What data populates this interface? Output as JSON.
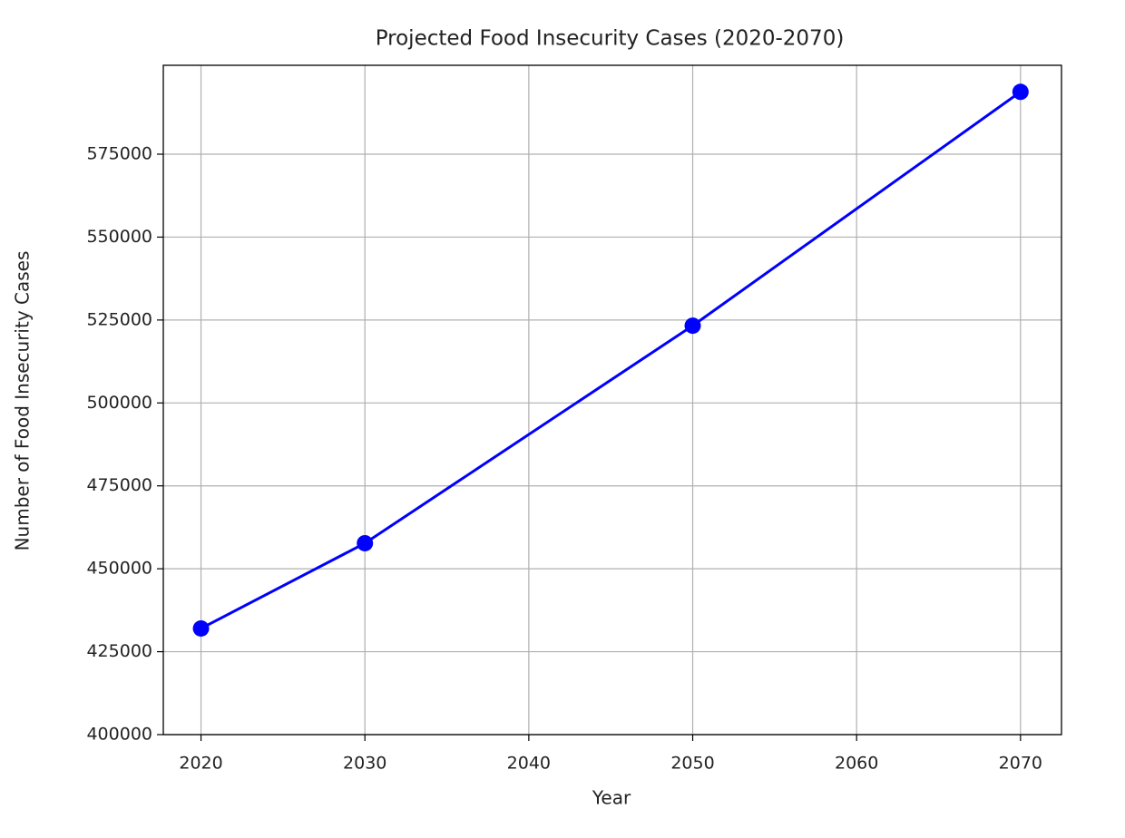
{
  "chart_data": {
    "type": "line",
    "title": "Projected Food Insecurity Cases (2020-2070)",
    "x_label": "Year",
    "y_label": "Number of Food Insecurity Cases",
    "x": [
      2020,
      2030,
      2050,
      2070
    ],
    "series": [
      {
        "name": "Food Insecurity Cases",
        "color": "#0000ff",
        "values": [
          432000,
          457700,
          523300,
          593800
        ]
      }
    ],
    "xlim": [
      2017.7,
      2072.5
    ],
    "xticks": [
      2020,
      2030,
      2040,
      2050,
      2060,
      2070
    ],
    "ylim": [
      400000,
      601800
    ],
    "yticks": [
      400000,
      425000,
      450000,
      475000,
      500000,
      525000,
      550000,
      575000
    ],
    "grid": true,
    "marker": "circle"
  }
}
